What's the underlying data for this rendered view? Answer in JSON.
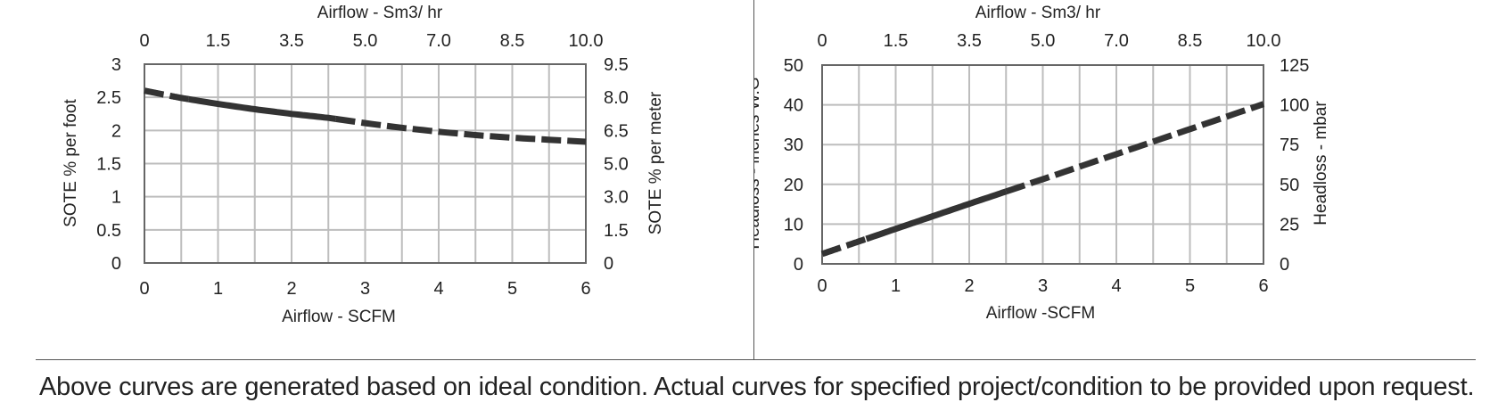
{
  "chart_data": [
    {
      "type": "line",
      "id": "sote",
      "x_bottom_label": "Airflow - SCFM",
      "x_top_label": "Airflow - Sm3/ hr",
      "y_left_label": "SOTE % per foot",
      "y_right_label": "SOTE % per meter",
      "x_range": [
        0,
        6
      ],
      "x_ticks": [
        "0",
        "1",
        "2",
        "3",
        "4",
        "5",
        "6"
      ],
      "x_top_ticks": [
        "0",
        "1.5",
        "3.5",
        "5.0",
        "7.0",
        "8.5",
        "10.0"
      ],
      "y_range": [
        0,
        3
      ],
      "y_left_ticks": [
        "0",
        "0.5",
        "1",
        "1.5",
        "2",
        "2.5",
        "3"
      ],
      "y_right_ticks": [
        "0",
        "1.5",
        "3.0",
        "5.0",
        "6.5",
        "8.0",
        "9.5"
      ],
      "grid": true,
      "series": [
        {
          "style": "mixed",
          "points": [
            [
              0,
              2.6
            ],
            [
              0.5,
              2.49
            ],
            [
              1,
              2.4
            ],
            [
              1.5,
              2.32
            ],
            [
              2,
              2.25
            ],
            [
              2.5,
              2.19
            ],
            [
              3,
              2.11
            ],
            [
              3.5,
              2.04
            ],
            [
              4,
              1.98
            ],
            [
              4.5,
              1.93
            ],
            [
              5,
              1.89
            ],
            [
              5.5,
              1.86
            ],
            [
              6,
              1.83
            ]
          ],
          "dashed_ranges": [
            [
              0,
              0.6
            ],
            [
              2.6,
              6
            ]
          ]
        }
      ]
    },
    {
      "type": "line",
      "id": "headloss",
      "x_bottom_label": "Airflow -SCFM",
      "x_top_label": "Airflow - Sm3/ hr",
      "y_left_label": "Headloss - inches W.G",
      "y_right_label": "Headloss - mbar",
      "x_range": [
        0,
        6
      ],
      "x_ticks": [
        "0",
        "1",
        "2",
        "3",
        "4",
        "5",
        "6"
      ],
      "x_top_ticks": [
        "0",
        "1.5",
        "3.5",
        "5.0",
        "7.0",
        "8.5",
        "10.0"
      ],
      "y_range": [
        0,
        50
      ],
      "y_left_ticks": [
        "0",
        "10",
        "20",
        "30",
        "40",
        "50"
      ],
      "y_right_ticks": [
        "0",
        "25",
        "50",
        "75",
        "100",
        "125"
      ],
      "grid": true,
      "series": [
        {
          "style": "mixed",
          "points": [
            [
              0,
              2.5
            ],
            [
              1,
              8.8
            ],
            [
              2,
              15.1
            ],
            [
              3,
              21.3
            ],
            [
              4,
              27.6
            ],
            [
              5,
              33.9
            ],
            [
              6,
              40.2
            ]
          ],
          "dashed_ranges": [
            [
              0,
              0.6
            ],
            [
              2.5,
              6
            ]
          ]
        }
      ]
    }
  ],
  "footnote": "Above curves are generated based on ideal condition.  Actual curves for specified project/condition to be provided upon request.",
  "colors": {
    "line": "#333333",
    "grid": "#bdbdbd",
    "axis": "#666666"
  }
}
